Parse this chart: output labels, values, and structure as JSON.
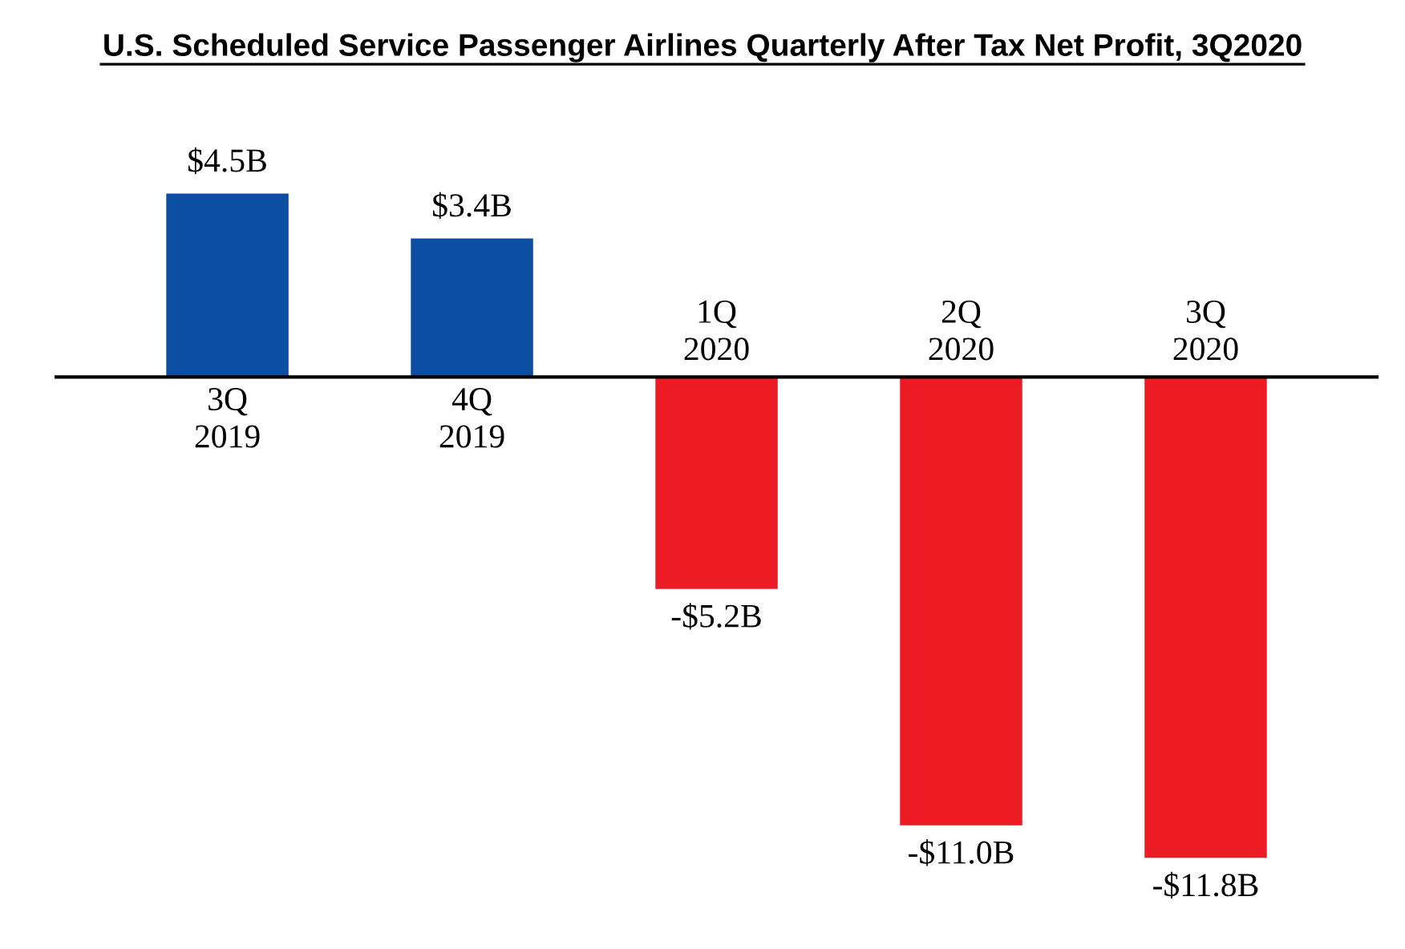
{
  "chart_data": {
    "type": "bar",
    "title": "U.S. Scheduled Service Passenger Airlines Quarterly After Tax Net Profit, 3Q2020",
    "categories": [
      "3Q\n2019",
      "4Q\n2019",
      "1Q\n2020",
      "2Q\n2020",
      "3Q\n2020"
    ],
    "values": [
      4.5,
      3.4,
      -5.2,
      -11.0,
      -11.8
    ],
    "colors": [
      "#0b4ea2",
      "#0b4ea2",
      "#ed1c24",
      "#ed1c24",
      "#ed1c24"
    ],
    "value_labels": [
      "$4.5B",
      "$3.4B",
      "-$5.2B",
      "-$11.0B",
      "-$11.8B"
    ]
  }
}
